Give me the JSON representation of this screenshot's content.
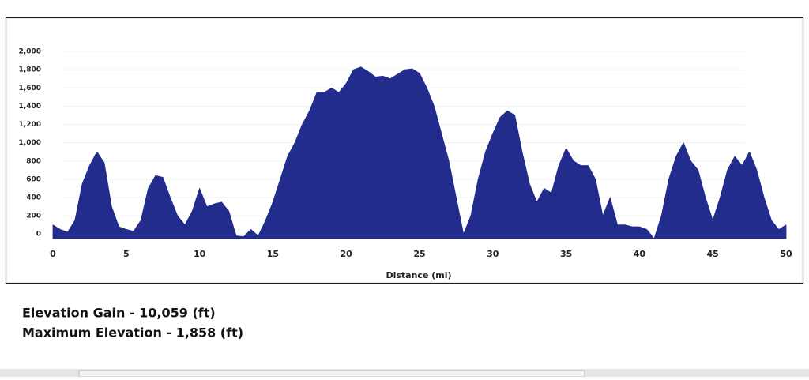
{
  "chart_data": {
    "type": "area",
    "x_label": "Distance (mi)",
    "x": [
      0,
      0.5,
      1,
      1.5,
      2,
      2.5,
      3,
      3.5,
      4,
      4.5,
      5,
      5.5,
      6,
      6.5,
      7,
      7.5,
      8,
      8.5,
      9,
      9.5,
      10,
      10.5,
      11,
      11.5,
      12,
      12.5,
      13,
      13.5,
      14,
      14.5,
      15,
      15.5,
      16,
      16.5,
      17,
      17.5,
      18,
      18.5,
      19,
      19.5,
      20,
      20.5,
      21,
      21.5,
      22,
      22.5,
      23,
      23.5,
      24,
      24.5,
      25,
      25.5,
      26,
      26.5,
      27,
      27.5,
      28,
      28.5,
      29,
      29.5,
      30,
      30.5,
      31,
      31.5,
      32,
      32.5,
      33,
      33.5,
      34,
      34.5,
      35,
      35.5,
      36,
      36.5,
      37,
      37.5,
      38,
      38.5,
      39,
      39.5,
      40,
      40.5,
      41,
      41.5,
      42,
      42.5,
      43,
      43.5,
      44,
      44.5,
      45,
      45.5,
      46,
      46.5,
      47,
      47.5,
      48,
      48.5,
      49,
      49.5,
      50
    ],
    "values": [
      100,
      50,
      20,
      150,
      550,
      750,
      900,
      780,
      300,
      80,
      50,
      30,
      150,
      500,
      640,
      620,
      400,
      200,
      100,
      250,
      500,
      300,
      330,
      350,
      250,
      -20,
      -30,
      50,
      -20,
      150,
      350,
      600,
      850,
      1000,
      1200,
      1350,
      1550,
      1550,
      1600,
      1550,
      1650,
      1800,
      1830,
      1780,
      1720,
      1730,
      1700,
      1750,
      1800,
      1810,
      1760,
      1600,
      1400,
      1100,
      800,
      400,
      0,
      200,
      600,
      900,
      1100,
      1280,
      1350,
      1300,
      900,
      550,
      350,
      500,
      450,
      750,
      940,
      800,
      750,
      750,
      600,
      200,
      400,
      100,
      100,
      80,
      80,
      50,
      -50,
      200,
      600,
      850,
      1000,
      800,
      700,
      400,
      150,
      400,
      700,
      850,
      750,
      900,
      700,
      400,
      150,
      50,
      100
    ],
    "color": "#222c8c",
    "xlim": [
      0,
      50
    ],
    "xticks": [
      0,
      5,
      10,
      15,
      20,
      25,
      30,
      35,
      40,
      45,
      50
    ],
    "ylim": [
      -50,
      2100
    ],
    "yticks": [
      0,
      200,
      400,
      600,
      800,
      {
        "value": 1000,
        "label": "1,000"
      },
      {
        "value": 1200,
        "label": "1,200"
      },
      {
        "value": 1400,
        "label": "1,400"
      },
      {
        "value": 1600,
        "label": "1,600"
      },
      {
        "value": 1800,
        "label": "1,800"
      },
      {
        "value": 2000,
        "label": "2,000"
      }
    ],
    "grid": true,
    "annotations": [
      "Elevation Gain - 10,059 (ft)",
      "Maximum Elevation - 1,858 (ft)"
    ]
  }
}
